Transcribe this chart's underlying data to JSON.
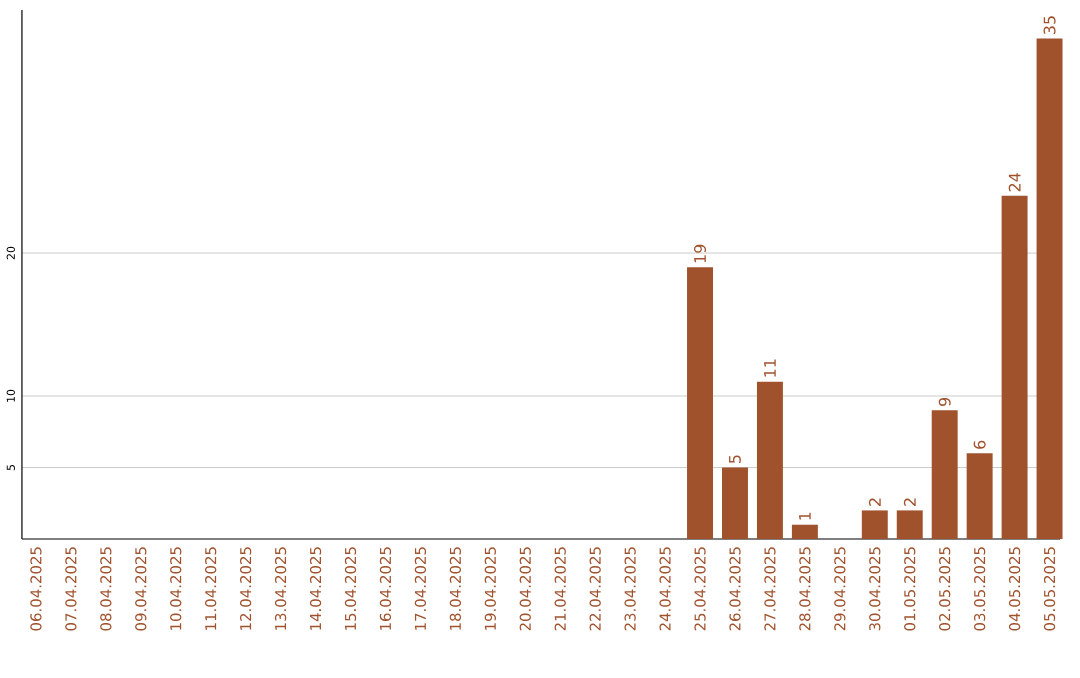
{
  "chart_data": {
    "type": "bar",
    "categories": [
      "06.04.2025",
      "07.04.2025",
      "08.04.2025",
      "09.04.2025",
      "10.04.2025",
      "11.04.2025",
      "12.04.2025",
      "13.04.2025",
      "14.04.2025",
      "15.04.2025",
      "16.04.2025",
      "17.04.2025",
      "18.04.2025",
      "19.04.2025",
      "20.04.2025",
      "21.04.2025",
      "22.04.2025",
      "23.04.2025",
      "24.04.2025",
      "25.04.2025",
      "26.04.2025",
      "27.04.2025",
      "28.04.2025",
      "29.04.2025",
      "30.04.2025",
      "01.05.2025",
      "02.05.2025",
      "03.05.2025",
      "04.05.2025",
      "05.05.2025"
    ],
    "values": [
      0,
      0,
      0,
      0,
      0,
      0,
      0,
      0,
      0,
      0,
      0,
      0,
      0,
      0,
      0,
      0,
      0,
      0,
      0,
      19,
      5,
      11,
      1,
      0,
      2,
      2,
      9,
      6,
      24,
      35
    ],
    "value_labels": [
      null,
      null,
      null,
      null,
      null,
      null,
      null,
      null,
      null,
      null,
      null,
      null,
      null,
      null,
      null,
      null,
      null,
      null,
      null,
      "19",
      "5",
      "11",
      "1",
      null,
      "2",
      "2",
      "9",
      "6",
      "24",
      "35"
    ],
    "color": "#a0522d",
    "ylim": [
      0,
      37
    ],
    "yticks": [
      5,
      10,
      20
    ],
    "grid": "y"
  }
}
